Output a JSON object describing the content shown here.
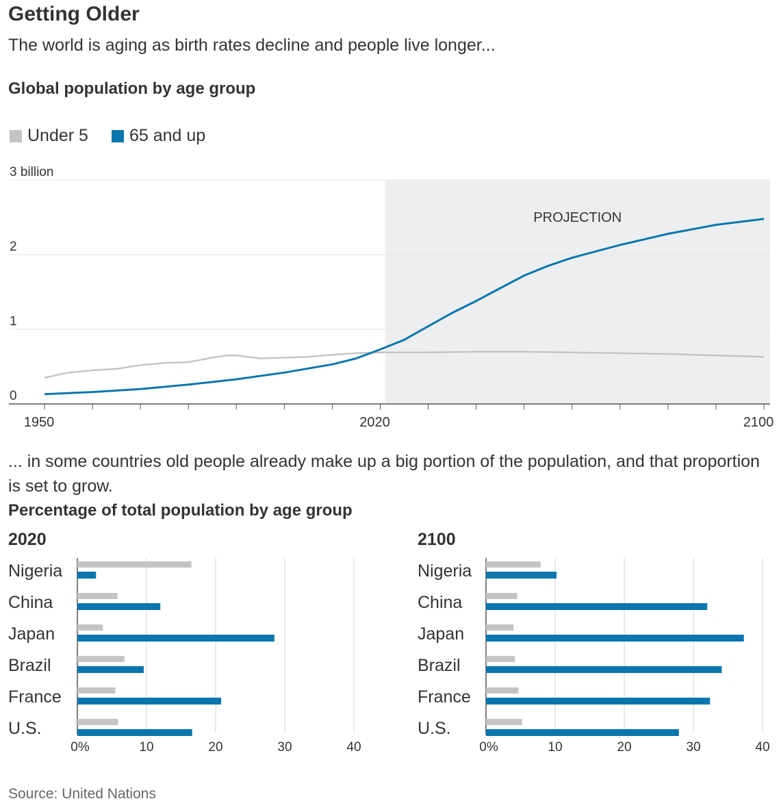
{
  "title": "Getting Older",
  "subtitle": "The world is aging as birth rates decline and people live longer...",
  "bridge_text": "... in some countries old people already make up a big portion of the population, and that proportion is set to grow.",
  "source": "Source: United Nations",
  "colors": {
    "under5": "#c4c4c4",
    "over65": "#0b76ad",
    "projection_bg": "#eceef0"
  },
  "chart_data": [
    {
      "type": "line",
      "title": "Global population by age group",
      "legend": [
        "Under 5",
        "65 and up"
      ],
      "y_unit_label": "3 billion",
      "yticks": [
        0,
        1,
        2,
        3
      ],
      "ytick_labels": [
        "0",
        "1",
        "2",
        "3 billion"
      ],
      "xlim": [
        1950,
        2100
      ],
      "ylim": [
        0,
        3
      ],
      "xtick_labels": [
        "1950",
        "2020",
        "2100"
      ],
      "projection": {
        "label": "PROJECTION",
        "from": 2021,
        "to": 2100
      },
      "series": [
        {
          "name": "Under 5",
          "x": [
            1950,
            1955,
            1960,
            1965,
            1970,
            1975,
            1980,
            1985,
            1988,
            1990,
            1995,
            2000,
            2005,
            2010,
            2015,
            2020,
            2025,
            2030,
            2040,
            2050,
            2060,
            2070,
            2080,
            2090,
            2100
          ],
          "y": [
            0.35,
            0.42,
            0.45,
            0.47,
            0.52,
            0.55,
            0.56,
            0.62,
            0.65,
            0.65,
            0.61,
            0.62,
            0.63,
            0.66,
            0.68,
            0.69,
            0.69,
            0.69,
            0.7,
            0.7,
            0.69,
            0.68,
            0.67,
            0.65,
            0.63
          ]
        },
        {
          "name": "65 and up",
          "x": [
            1950,
            1960,
            1970,
            1980,
            1990,
            2000,
            2010,
            2015,
            2020,
            2025,
            2030,
            2035,
            2040,
            2045,
            2050,
            2055,
            2060,
            2070,
            2080,
            2090,
            2100
          ],
          "y": [
            0.13,
            0.16,
            0.2,
            0.26,
            0.33,
            0.42,
            0.53,
            0.61,
            0.73,
            0.86,
            1.04,
            1.22,
            1.38,
            1.55,
            1.72,
            1.85,
            1.96,
            2.13,
            2.28,
            2.4,
            2.48
          ]
        }
      ]
    },
    {
      "type": "bar",
      "title": "Percentage of total population by age group",
      "panel_label": "2020",
      "categories": [
        "Nigeria",
        "China",
        "Japan",
        "Brazil",
        "France",
        "U.S."
      ],
      "xlim": [
        0,
        40
      ],
      "xtick_labels": [
        "0%",
        "10",
        "20",
        "30",
        "40"
      ],
      "series": [
        {
          "name": "Under 5",
          "values": [
            16.5,
            5.8,
            3.7,
            6.8,
            5.5,
            5.9
          ]
        },
        {
          "name": "65 and up",
          "values": [
            2.7,
            12.0,
            28.5,
            9.6,
            20.8,
            16.6
          ]
        }
      ]
    },
    {
      "type": "bar",
      "title": "Percentage of total population by age group",
      "panel_label": "2100",
      "categories": [
        "Nigeria",
        "China",
        "Japan",
        "Brazil",
        "France",
        "U.S."
      ],
      "xlim": [
        0,
        40
      ],
      "xtick_labels": [
        "0%",
        "10",
        "20",
        "30",
        "40"
      ],
      "series": [
        {
          "name": "Under 5",
          "values": [
            7.9,
            4.5,
            4.0,
            4.2,
            4.7,
            5.2
          ]
        },
        {
          "name": "65 and up",
          "values": [
            10.2,
            32.0,
            37.3,
            34.1,
            32.4,
            27.9
          ]
        }
      ]
    }
  ]
}
